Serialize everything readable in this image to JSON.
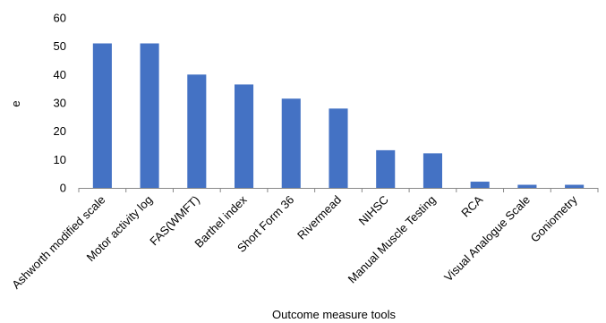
{
  "chart_data": {
    "type": "bar",
    "categories": [
      "Ashworth modified scale",
      "Motor activity log",
      "FAS(WMFT)",
      "Barthel index",
      "Short Form 36",
      "Rivermead",
      "NIHSC",
      "Manual Muscle Testing",
      "RCA",
      "Visual Analogue Scale",
      "Goniometry"
    ],
    "values": [
      51,
      51,
      40,
      36.5,
      31.5,
      28,
      13.3,
      12.2,
      2.2,
      1.1,
      1.1
    ],
    "xlabel": "Outcome measure tools",
    "ylabel": "e",
    "ylim": [
      0,
      60
    ],
    "yticks": [
      0,
      10,
      20,
      30,
      40,
      50,
      60
    ],
    "grid": false,
    "bar_color": "#4472C4"
  }
}
